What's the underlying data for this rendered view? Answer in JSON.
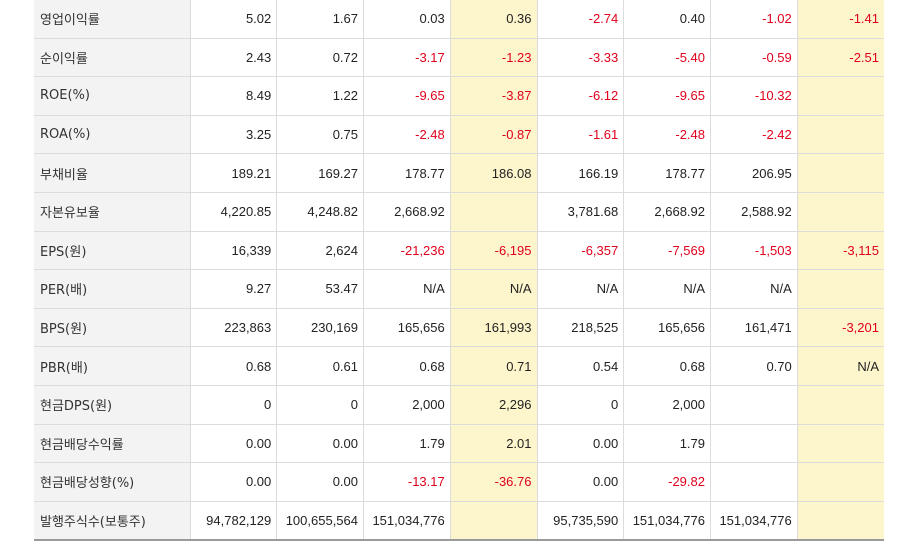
{
  "rows": [
    {
      "label": "영업이익률",
      "values": [
        "5.02",
        "1.67",
        "0.03",
        "0.36",
        "-2.74",
        "0.40",
        "-1.02",
        "-1.41"
      ]
    },
    {
      "label": "순이익률",
      "values": [
        "2.43",
        "0.72",
        "-3.17",
        "-1.23",
        "-3.33",
        "-5.40",
        "-0.59",
        "-2.51"
      ]
    },
    {
      "label": "ROE(%)",
      "values": [
        "8.49",
        "1.22",
        "-9.65",
        "-3.87",
        "-6.12",
        "-9.65",
        "-10.32",
        ""
      ]
    },
    {
      "label": "ROA(%)",
      "values": [
        "3.25",
        "0.75",
        "-2.48",
        "-0.87",
        "-1.61",
        "-2.48",
        "-2.42",
        ""
      ]
    },
    {
      "label": "부채비율",
      "values": [
        "189.21",
        "169.27",
        "178.77",
        "186.08",
        "166.19",
        "178.77",
        "206.95",
        ""
      ]
    },
    {
      "label": "자본유보율",
      "values": [
        "4,220.85",
        "4,248.82",
        "2,668.92",
        "",
        "3,781.68",
        "2,668.92",
        "2,588.92",
        ""
      ]
    },
    {
      "label": "EPS(원)",
      "values": [
        "16,339",
        "2,624",
        "-21,236",
        "-6,195",
        "-6,357",
        "-7,569",
        "-1,503",
        "-3,115"
      ]
    },
    {
      "label": "PER(배)",
      "values": [
        "9.27",
        "53.47",
        "N/A",
        "N/A",
        "N/A",
        "N/A",
        "N/A",
        ""
      ]
    },
    {
      "label": "BPS(원)",
      "values": [
        "223,863",
        "230,169",
        "165,656",
        "161,993",
        "218,525",
        "165,656",
        "161,471",
        "-3,201"
      ]
    },
    {
      "label": "PBR(배)",
      "values": [
        "0.68",
        "0.61",
        "0.68",
        "0.71",
        "0.54",
        "0.68",
        "0.70",
        "N/A"
      ]
    },
    {
      "label": "현금DPS(원)",
      "values": [
        "0",
        "0",
        "2,000",
        "2,296",
        "0",
        "2,000",
        "",
        ""
      ]
    },
    {
      "label": "현금배당수익률",
      "values": [
        "0.00",
        "0.00",
        "1.79",
        "2.01",
        "0.00",
        "1.79",
        "",
        ""
      ]
    },
    {
      "label": "현금배당성향(%)",
      "values": [
        "0.00",
        "0.00",
        "-13.17",
        "-36.76",
        "0.00",
        "-29.82",
        "",
        ""
      ]
    },
    {
      "label": "발행주식수(보통주)",
      "values": [
        "94,782,129",
        "100,655,564",
        "151,034,776",
        "",
        "95,735,590",
        "151,034,776",
        "151,034,776",
        ""
      ]
    }
  ],
  "colors": {
    "negative": "#e0001b",
    "highlight": "#fdf6cc",
    "label_bg": "#f3f3f3"
  }
}
